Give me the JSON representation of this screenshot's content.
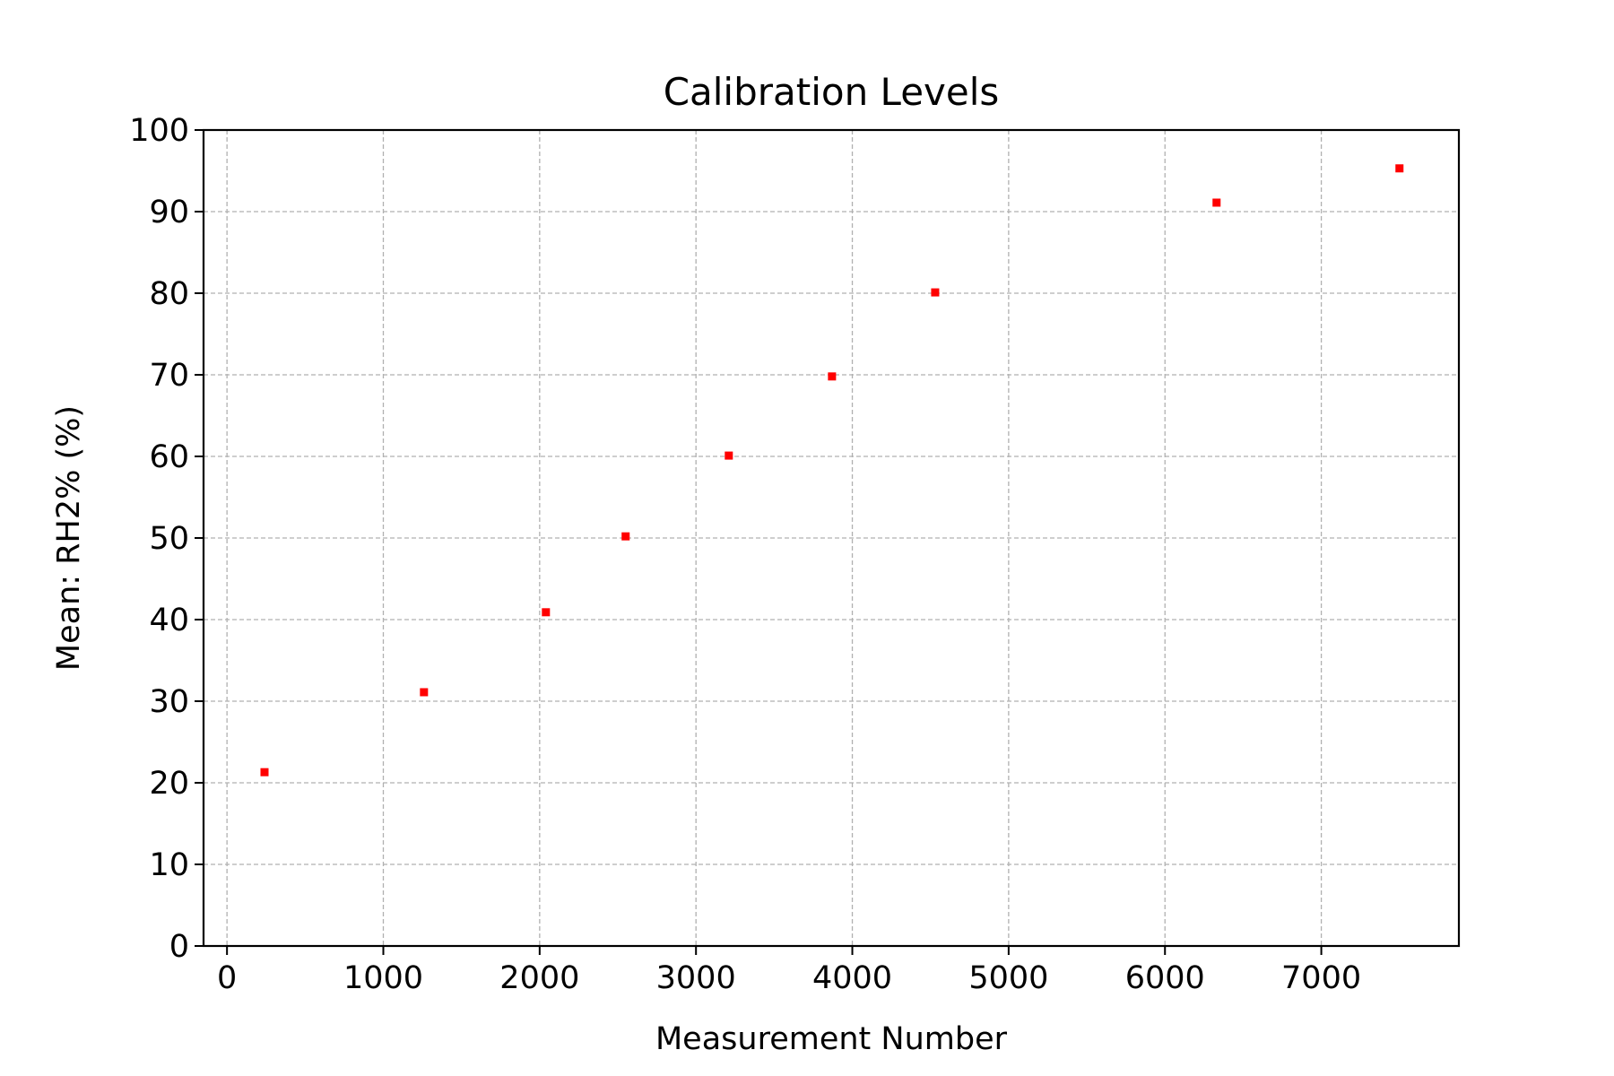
{
  "chart_data": {
    "type": "scatter",
    "title": "Calibration Levels",
    "xlabel": "Measurement Number",
    "ylabel": "Mean: RH2% (%)",
    "xlim": [
      -150,
      7880
    ],
    "ylim": [
      0,
      100
    ],
    "xticks": [
      0,
      1000,
      2000,
      3000,
      4000,
      5000,
      6000,
      7000
    ],
    "yticks": [
      0,
      10,
      20,
      30,
      40,
      50,
      60,
      70,
      80,
      90,
      100
    ],
    "grid": true,
    "marker_color": "#ff0000",
    "points": [
      {
        "x": 240,
        "y": 21.3
      },
      {
        "x": 1260,
        "y": 31.1
      },
      {
        "x": 2040,
        "y": 40.9
      },
      {
        "x": 2550,
        "y": 50.2
      },
      {
        "x": 3210,
        "y": 60.1
      },
      {
        "x": 3870,
        "y": 69.8
      },
      {
        "x": 4530,
        "y": 80.1
      },
      {
        "x": 6330,
        "y": 91.1
      },
      {
        "x": 7500,
        "y": 95.3
      }
    ]
  }
}
